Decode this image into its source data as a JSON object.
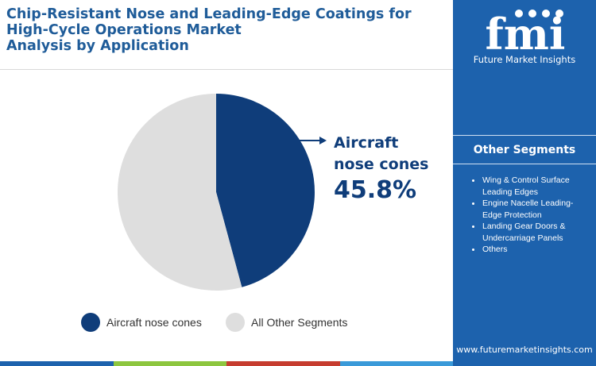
{
  "header": {
    "title_lines": [
      "Chip-Resistant Nose and Leading-Edge Coatings for",
      "High-Cycle Operations Market",
      "Analysis by Application"
    ]
  },
  "brand": {
    "logo_text": "fmi",
    "tagline": "Future Market Insights",
    "website": "www.futuremarketinsights.com"
  },
  "sidebar": {
    "heading": "Other Segments",
    "items": [
      "Wing & Control Surface Leading Edges",
      "Engine Nacelle Leading-Edge Protection",
      "Landing Gear Doors & Undercarriage Panels",
      "Others"
    ]
  },
  "callout": {
    "label_lines": [
      "Aircraft",
      "nose cones"
    ],
    "value": "45.8%"
  },
  "chart_data": {
    "type": "pie",
    "title": "",
    "slices": [
      {
        "label": "Aircraft nose cones",
        "value": 45.8,
        "color": "#0f3d7a"
      },
      {
        "label": "All Other Segments",
        "value": 54.2,
        "color": "#dedede"
      }
    ],
    "legend": {
      "placement": "bottom"
    }
  },
  "colors": {
    "primary": "#0f3d7a",
    "sidebar": "#1d62ad",
    "title": "#1f5c99",
    "gray_slice": "#dedede",
    "bottom_bar": [
      "#1d62ad",
      "#8dc63f",
      "#c63c2f",
      "#3a9ad9"
    ]
  }
}
